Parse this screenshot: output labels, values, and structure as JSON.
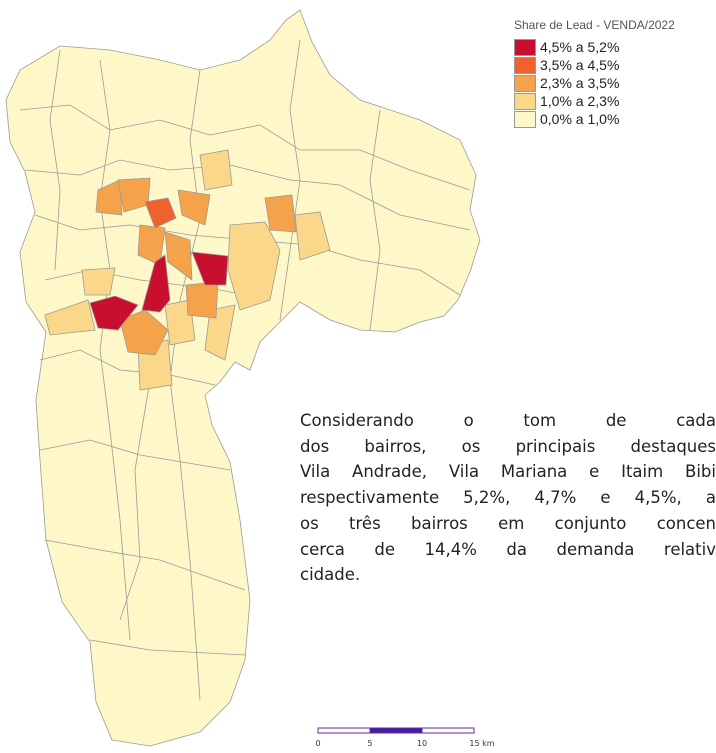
{
  "legend": {
    "title": "Share de Lead - VENDA/2022",
    "entries": [
      {
        "label": "4,5% a 5,2%",
        "color": "#c8102e"
      },
      {
        "label": "3,5% a 4,5%",
        "color": "#f0622d"
      },
      {
        "label": "2,3% a 3,5%",
        "color": "#f5a34a"
      },
      {
        "label": "1,0% a 2,3%",
        "color": "#fbd889"
      },
      {
        "label": "0,0% a 1,0%",
        "color": "#fef8c8"
      }
    ]
  },
  "paragraph": {
    "lines": [
      "Considerando o tom de cada",
      "dos bairros, os principais destaques",
      "Vila Andrade, Vila Mariana e Itaim Bibi",
      "respectivamente 5,2%, 4,7% e 4,5%, a",
      "os três bairros em conjunto concen",
      "cerca de 14,4% da demanda relativ",
      "cidade."
    ]
  },
  "scale": {
    "labels": [
      "0",
      "5",
      "10",
      "15 km"
    ]
  }
}
